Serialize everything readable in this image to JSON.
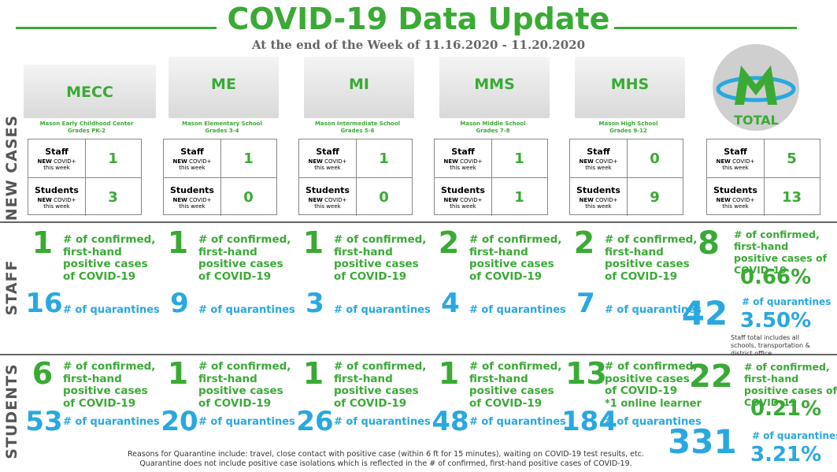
{
  "title": "COVID-19 Data Update",
  "subtitle": "At the end of the Week of 11.16.2020 - 11.20.2020",
  "sections": {
    "new_cases": "NEW CASES",
    "staff": "STAFF",
    "students": "STUDENTS"
  },
  "box_labels": {
    "staff": "Staff",
    "students": "Students",
    "new": "NEW",
    "covid": "COVID+",
    "this_week": "this week"
  },
  "schools": [
    {
      "abbr": "MECC",
      "name": "Mason Early Childhood Center",
      "grades": "Grades PK-2",
      "staff_new": 1,
      "students_new": 3
    },
    {
      "abbr": "ME",
      "name": "Mason Elementary School",
      "grades": "Grades 3-4",
      "staff_new": 1,
      "students_new": 0
    },
    {
      "abbr": "MI",
      "name": "Mason Intermediate  School",
      "grades": "Grades 5-6",
      "staff_new": 1,
      "students_new": 0
    },
    {
      "abbr": "MMS",
      "name": "Mason Middle School",
      "grades": "Grades 7-8",
      "staff_new": 1,
      "students_new": 1
    },
    {
      "abbr": "MHS",
      "name": "Mason High School",
      "grades": "Grades 9-12",
      "staff_new": 0,
      "students_new": 9
    }
  ],
  "total": {
    "label": "TOTAL",
    "staff_new": 5,
    "students_new": 13
  },
  "staff": [
    {
      "confirmed": 1,
      "confirmed_label": "# of confirmed, first-hand positive cases of COVID-19",
      "quarantines": 16,
      "quarantines_label": "# of quarantines"
    },
    {
      "confirmed": 1,
      "confirmed_label": "# of confirmed, first-hand positive cases of COVID-19",
      "quarantines": 9,
      "quarantines_label": "# of quarantines"
    },
    {
      "confirmed": 1,
      "confirmed_label": "# of confirmed, first-hand positive cases of COVID-19",
      "quarantines": 3,
      "quarantines_label": "# of quarantines"
    },
    {
      "confirmed": 2,
      "confirmed_label": "# of confirmed, first-hand positive cases of COVID-19",
      "quarantines": 4,
      "quarantines_label": "# of quarantines"
    },
    {
      "confirmed": 2,
      "confirmed_label": "# of confirmed, first-hand positive cases of COVID-19",
      "quarantines": 7,
      "quarantines_label": "# of quarantines"
    }
  ],
  "staff_total": {
    "confirmed": 8,
    "confirmed_label": "# of confirmed, first-hand positive cases of COVID-19",
    "confirmed_pct": "0.66%",
    "quarantines": 42,
    "quarantines_label": "# of quarantines",
    "quarantines_pct": "3.50%",
    "note": "Staff total includes all schools, transportation & district office"
  },
  "students": [
    {
      "confirmed": 6,
      "confirmed_label": "# of confirmed, first-hand positive cases of COVID-19",
      "quarantines": 53,
      "quarantines_label": "# of quarantines"
    },
    {
      "confirmed": 1,
      "confirmed_label": "# of confirmed, first-hand positive cases of COVID-19",
      "quarantines": 20,
      "quarantines_label": "# of quarantines"
    },
    {
      "confirmed": 1,
      "confirmed_label": "# of confirmed, first-hand positive cases of COVID-19",
      "quarantines": 26,
      "quarantines_label": "# of quarantines"
    },
    {
      "confirmed": 1,
      "confirmed_label": "# of confirmed, first-hand positive cases of COVID-19",
      "quarantines": 48,
      "quarantines_label": "# of quarantines"
    },
    {
      "confirmed": 13,
      "confirmed_label": "# of confirmed, positive cases of COVID-19",
      "note": "*1 online learner",
      "quarantines": 184,
      "quarantines_label": "# of quarantines"
    }
  ],
  "students_total": {
    "confirmed": 22,
    "confirmed_label": "# of confirmed, first-hand positive cases of COVID-19",
    "confirmed_pct": "0.21%",
    "quarantines": 331,
    "quarantines_label": "# of quarantines",
    "quarantines_pct": "3.21%"
  },
  "footer": [
    "Reasons for Quarantine include: travel, close contact with positive case (within 6 ft for 15 minutes), waiting on COVID-19 test results, etc.",
    "Quarantine does not include positive case isolations which is reflected in the # of confirmed, first-hand positive cases of COVID-19."
  ]
}
